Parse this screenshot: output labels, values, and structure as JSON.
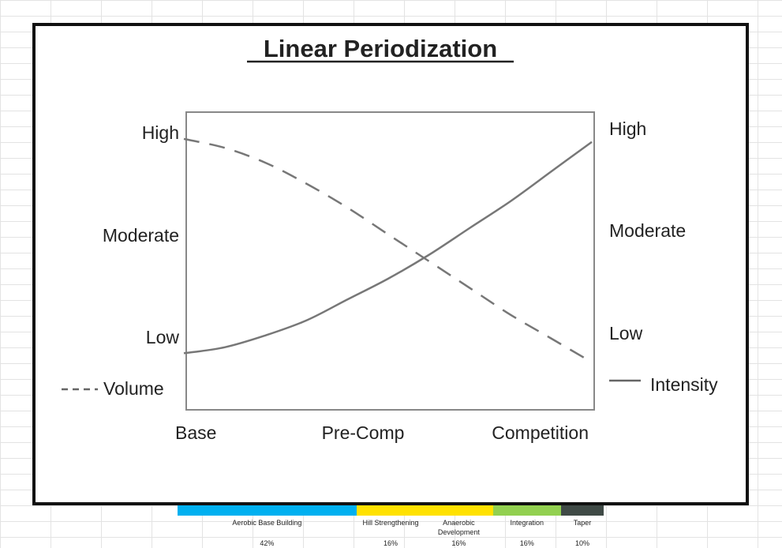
{
  "chart_data": {
    "type": "line",
    "title": "Linear Periodization",
    "categories": [
      "Base",
      "Pre-Comp",
      "Competition"
    ],
    "x_range": [
      0,
      1
    ],
    "y_range": [
      0,
      1
    ],
    "left_axis_labels": [
      "High",
      "Moderate",
      "Low"
    ],
    "right_axis_labels": [
      "High",
      "Moderate",
      "Low"
    ],
    "series": [
      {
        "name": "Volume",
        "line_style": "dashed",
        "x": [
          0.0,
          0.1,
          0.2,
          0.3,
          0.4,
          0.5,
          0.6,
          0.7,
          0.8,
          0.9,
          1.0
        ],
        "y": [
          0.91,
          0.88,
          0.83,
          0.76,
          0.68,
          0.59,
          0.5,
          0.41,
          0.32,
          0.24,
          0.16
        ]
      },
      {
        "name": "Intensity",
        "line_style": "solid",
        "x": [
          0.0,
          0.1,
          0.2,
          0.3,
          0.4,
          0.5,
          0.6,
          0.7,
          0.8,
          0.9,
          1.0
        ],
        "y": [
          0.19,
          0.21,
          0.25,
          0.3,
          0.37,
          0.44,
          0.52,
          0.61,
          0.7,
          0.8,
          0.9
        ]
      }
    ],
    "legend": {
      "left": "Volume",
      "right": "Intensity"
    },
    "colors": {
      "line": "#777777",
      "axis": "#888888",
      "text": "#222222"
    }
  },
  "phases": [
    {
      "label": "Aerobic Base Building",
      "percent": "42%",
      "color": "#00b0f0"
    },
    {
      "label": "Hill Strengthening",
      "percent": "16%",
      "color": "#ffe100"
    },
    {
      "label": "Anaerobic Development",
      "percent": "16%",
      "color": "#ffe100"
    },
    {
      "label": "Integration",
      "percent": "16%",
      "color": "#92d050"
    },
    {
      "label": "Taper",
      "percent": "10%",
      "color": "#3f4a46"
    }
  ]
}
